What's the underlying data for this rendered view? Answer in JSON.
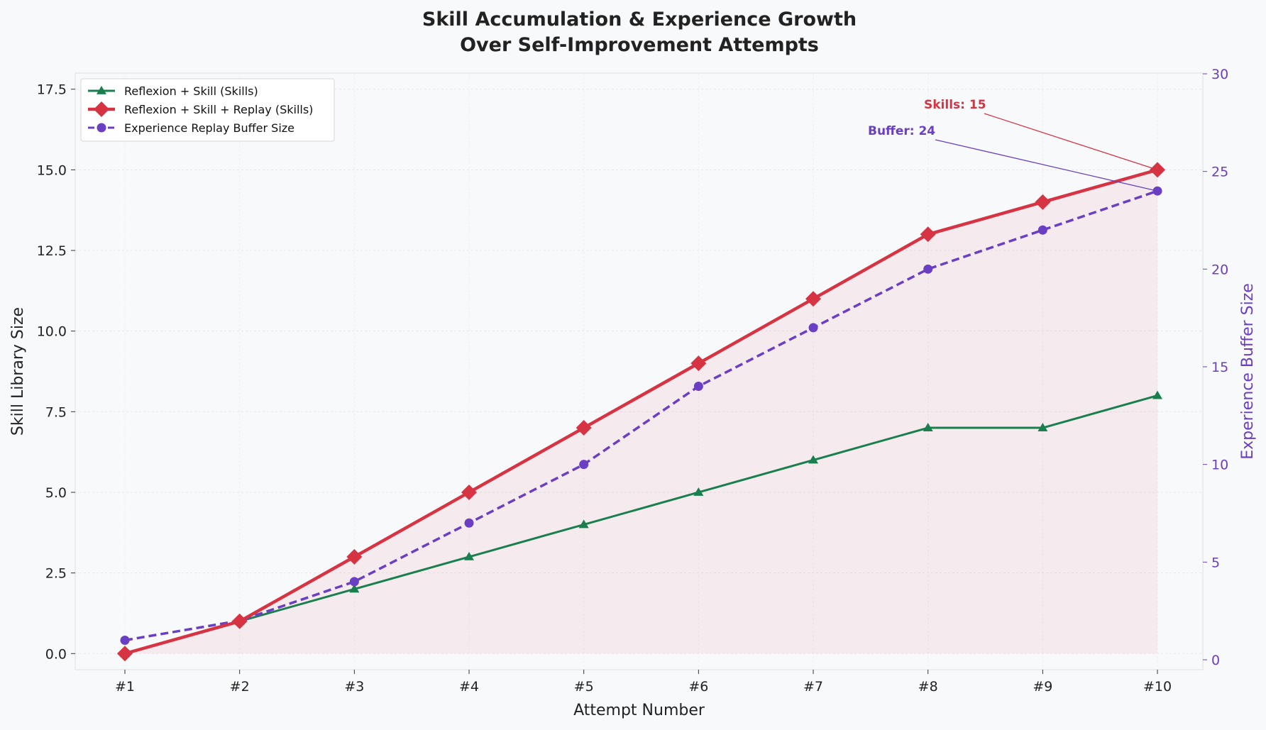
{
  "chart_data": {
    "type": "line",
    "title": [
      "Skill Accumulation & Experience Growth",
      "Over Self-Improvement Attempts"
    ],
    "xlabel": "Attempt Number",
    "ylabel": "Skill Library Size",
    "ylabel_right": "Experience Buffer Size",
    "categories": [
      "#1",
      "#2",
      "#3",
      "#4",
      "#5",
      "#6",
      "#7",
      "#8",
      "#9",
      "#10"
    ],
    "ylim": [
      -0.5,
      18
    ],
    "ylim_right": [
      0,
      30
    ],
    "yticks": [
      "0.0",
      "2.5",
      "5.0",
      "7.5",
      "10.0",
      "12.5",
      "15.0",
      "17.5"
    ],
    "yticks_right": [
      "0",
      "5",
      "10",
      "15",
      "20",
      "25",
      "30"
    ],
    "grid": true,
    "legend_position": "upper-left",
    "series": [
      {
        "name": "Reflexion + Skill (Skills)",
        "axis": "left",
        "color": "#1a7f4f",
        "marker": "triangle",
        "style": "solid",
        "values": [
          0,
          1,
          2,
          3,
          4,
          5,
          6,
          7,
          7,
          8
        ]
      },
      {
        "name": "Reflexion + Skill + Replay (Skills)",
        "axis": "left",
        "color": "#d63343",
        "marker": "diamond",
        "style": "solid",
        "fill": true,
        "values": [
          0,
          1,
          3,
          5,
          7,
          9,
          11,
          13,
          14,
          15
        ]
      },
      {
        "name": "Experience Replay Buffer Size",
        "axis": "right",
        "color": "#6a3fc4",
        "marker": "circle",
        "style": "dashed",
        "values": [
          1,
          2,
          4,
          7,
          10,
          14,
          17,
          20,
          22,
          24
        ]
      }
    ],
    "annotations": [
      {
        "text": "Skills: 15",
        "color": "#d63343",
        "target_series": 1,
        "target_index": 9
      },
      {
        "text": "Buffer: 24",
        "color": "#6a3fc4",
        "target_series": 2,
        "target_index": 9
      }
    ]
  }
}
